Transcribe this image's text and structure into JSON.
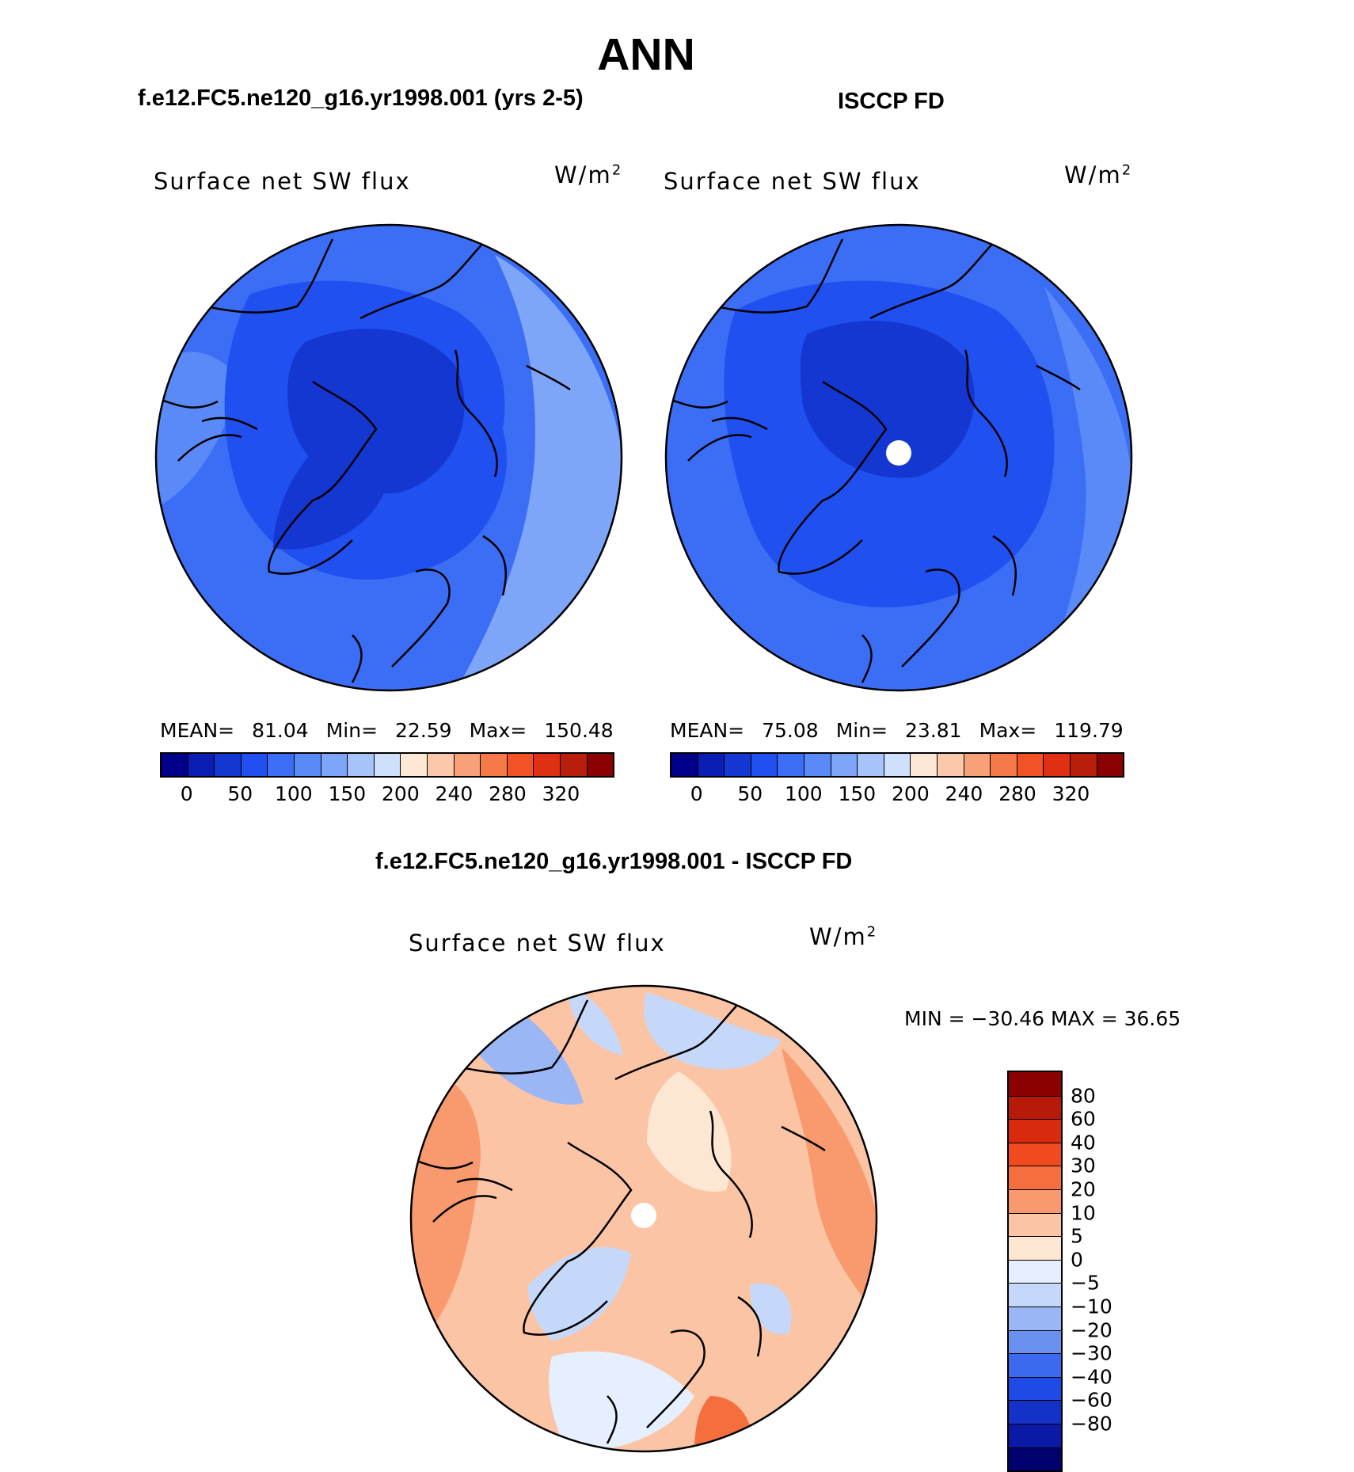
{
  "figure": {
    "season": "ANN"
  },
  "panels": {
    "model": {
      "case_title": "f.e12.FC5.ne120_g16.yr1998.001 (yrs 2-5)",
      "variable": "Surface net SW flux",
      "units": "W/m",
      "units_exp": "2",
      "stats": {
        "mean_label": "MEAN=",
        "mean": "81.04",
        "min_label": "Min=",
        "min": "22.59",
        "max_label": "Max=",
        "max": "150.48"
      }
    },
    "obs": {
      "case_title": "ISCCP FD",
      "variable": "Surface net SW flux",
      "units": "W/m",
      "units_exp": "2",
      "stats": {
        "mean_label": "MEAN=",
        "mean": "75.08",
        "min_label": "Min=",
        "min": "23.81",
        "max_label": "Max=",
        "max": "119.79"
      }
    },
    "diff": {
      "case_title": "f.e12.FC5.ne120_g16.yr1998.001 - ISCCP FD",
      "variable": "Surface net SW flux",
      "units": "W/m",
      "units_exp": "2",
      "stats_text": "MIN = −30.46 MAX =   36.65"
    }
  },
  "colorbars": {
    "abs": {
      "colors": [
        "#00008b",
        "#0a1eb4",
        "#1437d2",
        "#2050f0",
        "#3c6ef5",
        "#5a8af7",
        "#7ea6f8",
        "#a6c3fa",
        "#cfe0fc",
        "#fde7d5",
        "#fbc9a9",
        "#f8a077",
        "#f57a48",
        "#f25324",
        "#e03014",
        "#b81e0a",
        "#8b0000"
      ],
      "ticks": [
        "0",
        "50",
        "100",
        "150",
        "200",
        "240",
        "280",
        "320"
      ]
    },
    "diff": {
      "colors": [
        "#00006e",
        "#0a1aa6",
        "#1432c8",
        "#1e4be6",
        "#3c6aee",
        "#6a90f0",
        "#9ab6f4",
        "#c6d8f9",
        "#e6efff",
        "#fde6d2",
        "#fbc4a4",
        "#f89a6e",
        "#f56e3e",
        "#f04a1e",
        "#d92a10",
        "#b81a0a",
        "#8b0000"
      ],
      "ticks": [
        "80",
        "60",
        "40",
        "30",
        "20",
        "10",
        "5",
        "0",
        "−5",
        "−10",
        "−20",
        "−30",
        "−40",
        "−60",
        "−80"
      ]
    }
  }
}
